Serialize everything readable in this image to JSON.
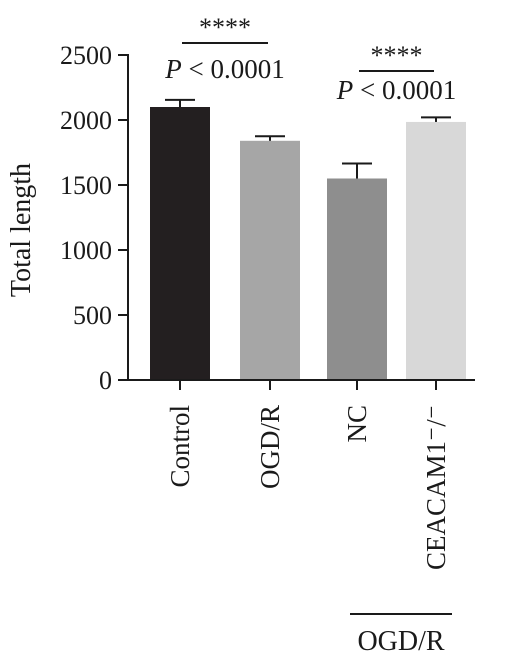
{
  "chart_data": {
    "type": "bar",
    "categories": [
      "Control",
      "OGD/R",
      "NC",
      "CEACAM1⁻/⁻"
    ],
    "values": [
      2100,
      1840,
      1550,
      1985
    ],
    "errors": [
      55,
      35,
      115,
      35
    ],
    "colors": [
      "#231f20",
      "#a6a6a6",
      "#8e8e8e",
      "#d8d8d8"
    ],
    "ylabel": "Total length",
    "ylim": [
      0,
      2500
    ],
    "yticks": [
      0,
      500,
      1000,
      1500,
      2000,
      2500
    ],
    "grid": false,
    "group_label": "OGD/R",
    "comparisons": [
      {
        "from": 0,
        "to": 1,
        "stars": "****",
        "p_label": "P",
        "p_text": " < 0.0001"
      },
      {
        "from": 2,
        "to": 3,
        "stars": "****",
        "p_label": "P",
        "p_text": " < 0.0001"
      }
    ]
  }
}
